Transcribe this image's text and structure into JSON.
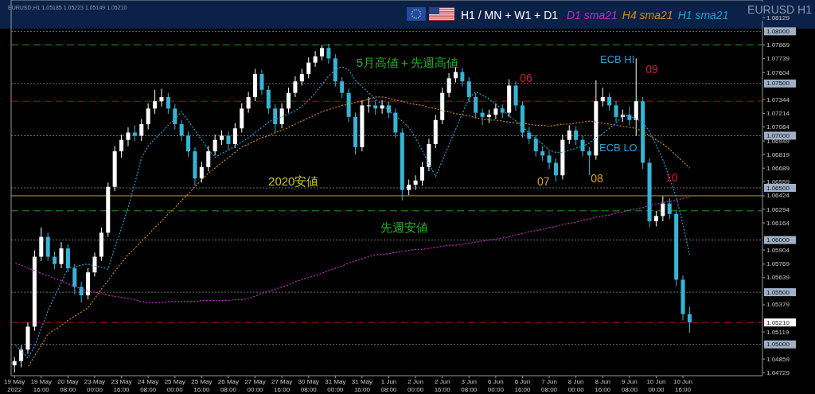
{
  "chart_data": {
    "type": "candlestick",
    "title": "H1 / MN + W1 + D1",
    "subtitle": "EURUSD H1",
    "legend": "top",
    "annotations": [
      "EURUSD,H1  1.05185 1.05223 1.05149 1.05210",
      "5月高値＋先週高値",
      "2020安値",
      "先週安値",
      "06",
      "07",
      "08",
      "09",
      "10",
      "ECB HI",
      "ECB LO"
    ],
    "ylim": [
      1.047,
      1.083
    ],
    "categories": [
      "19 May 2022",
      null,
      null,
      null,
      "19 May 16:00",
      null,
      null,
      null,
      "20 May 08:00",
      null,
      null,
      null,
      "23 May 00:00",
      null,
      null,
      null,
      "23 May 16:00",
      null,
      null,
      null,
      "24 May 08:00",
      null,
      null,
      null,
      "25 May 00:00",
      null,
      null,
      null,
      "25 May 16:00",
      null,
      null,
      null,
      "26 May 08:00",
      null,
      null,
      null,
      "27 May 00:00",
      null,
      null,
      null,
      "27 May 16:00",
      null,
      null,
      null,
      "30 May 08:00",
      null,
      null,
      null,
      "31 May 00:00",
      null,
      null,
      null,
      "31 May 16:00",
      null,
      null,
      null,
      "1 Jun 08:00",
      null,
      null,
      null,
      "2 Jun 00:00",
      null,
      null,
      null,
      "2 Jun 16:00",
      null,
      null,
      null,
      "3 Jun 08:00",
      null,
      null,
      null,
      "6 Jun 00:00",
      null,
      null,
      null,
      "6 Jun 16:00",
      null,
      null,
      null,
      "7 Jun 08:00",
      null,
      null,
      null,
      "8 Jun 00:00",
      null,
      null,
      null,
      "8 Jun 16:00",
      null,
      null,
      null,
      "9 Jun 08:00",
      null,
      null,
      null,
      "10 Jun 00:00",
      null,
      null,
      null,
      "10 Jun 16:00",
      null
    ],
    "yticks": [
      1.04729,
      1.04859,
      1.05119,
      1.05379,
      1.05639,
      1.05769,
      1.05904,
      1.06164,
      1.06294,
      1.06424,
      1.06559,
      1.06689,
      1.06819,
      1.06949,
      1.07084,
      1.07214,
      1.07344,
      1.07604,
      1.07739,
      1.07869,
      1.08129
    ],
    "ref_lines": [
      {
        "axis": "y",
        "value": 1.0787,
        "color": "#1f9e1f",
        "line_style": "dashed"
      },
      {
        "axis": "y",
        "value": 1.0628,
        "color": "#1f9e1f",
        "line_style": "dashed"
      },
      {
        "axis": "y",
        "value": 1.06424,
        "color": "#b5a800",
        "line_style": "solid"
      },
      {
        "axis": "y",
        "value": 1.0733,
        "color": "#b01010",
        "line_style": "dashed"
      },
      {
        "axis": "y",
        "value": 1.0521,
        "color": "#b01010",
        "line_style": "dashed",
        "label": "1.05210"
      },
      {
        "axis": "y",
        "value": 1.08,
        "color": "#707070",
        "line_style": "dotted",
        "label": "1.08000"
      },
      {
        "axis": "y",
        "value": 1.075,
        "color": "#707070",
        "line_style": "dotted",
        "label": "1.07500"
      },
      {
        "axis": "y",
        "value": 1.07,
        "color": "#707070",
        "line_style": "dotted",
        "label": "1.07000"
      },
      {
        "axis": "y",
        "value": 1.065,
        "color": "#707070",
        "line_style": "dotted",
        "label": "1.06500"
      },
      {
        "axis": "y",
        "value": 1.06,
        "color": "#707070",
        "line_style": "dotted",
        "label": "1.06000"
      },
      {
        "axis": "y",
        "value": 1.055,
        "color": "#707070",
        "line_style": "dotted",
        "label": "1.05500"
      },
      {
        "axis": "y",
        "value": 1.05,
        "color": "#707070",
        "line_style": "dotted",
        "label": "1.05000"
      }
    ],
    "ohlc": [
      [
        1.048,
        1.0488,
        1.0473,
        1.0484
      ],
      [
        1.0484,
        1.0499,
        1.0478,
        1.0495
      ],
      [
        1.0495,
        1.0521,
        1.0491,
        1.0517
      ],
      [
        1.0517,
        1.059,
        1.0513,
        1.0584
      ],
      [
        1.0584,
        1.0612,
        1.058,
        1.0603
      ],
      [
        1.0603,
        1.0607,
        1.058,
        1.0584
      ],
      [
        1.0584,
        1.0589,
        1.0572,
        1.0577
      ],
      [
        1.0577,
        1.0598,
        1.0573,
        1.0592
      ],
      [
        1.0592,
        1.0596,
        1.0569,
        1.0573
      ],
      [
        1.0573,
        1.0577,
        1.0548,
        1.0555
      ],
      [
        1.0555,
        1.056,
        1.054,
        1.0547
      ],
      [
        1.0547,
        1.0573,
        1.0543,
        1.0569
      ],
      [
        1.0569,
        1.0588,
        1.0565,
        1.0584
      ],
      [
        1.0584,
        1.0612,
        1.058,
        1.0607
      ],
      [
        1.0607,
        1.0655,
        1.0603,
        1.0651
      ],
      [
        1.0651,
        1.069,
        1.0647,
        1.0685
      ],
      [
        1.0685,
        1.0701,
        1.0679,
        1.0696
      ],
      [
        1.0696,
        1.0708,
        1.069,
        1.0703
      ],
      [
        1.0703,
        1.071,
        1.0695,
        1.07
      ],
      [
        1.07,
        1.0716,
        1.0695,
        1.0711
      ],
      [
        1.0711,
        1.0731,
        1.0706,
        1.0726
      ],
      [
        1.0726,
        1.0744,
        1.0721,
        1.0733
      ],
      [
        1.0733,
        1.0745,
        1.0728,
        1.0737
      ],
      [
        1.0737,
        1.0741,
        1.0721,
        1.0726
      ],
      [
        1.0726,
        1.073,
        1.0706,
        1.0711
      ],
      [
        1.0711,
        1.0715,
        1.0695,
        1.07
      ],
      [
        1.07,
        1.0704,
        1.068,
        1.0685
      ],
      [
        1.0685,
        1.0689,
        1.0652,
        1.0659
      ],
      [
        1.0659,
        1.0675,
        1.0655,
        1.067
      ],
      [
        1.067,
        1.069,
        1.0666,
        1.0685
      ],
      [
        1.0685,
        1.0701,
        1.0681,
        1.0696
      ],
      [
        1.0696,
        1.0705,
        1.0691,
        1.07
      ],
      [
        1.07,
        1.0704,
        1.0687,
        1.0692
      ],
      [
        1.0692,
        1.0712,
        1.0688,
        1.0707
      ],
      [
        1.0707,
        1.0731,
        1.0703,
        1.0726
      ],
      [
        1.0726,
        1.0742,
        1.0722,
        1.0737
      ],
      [
        1.0737,
        1.0764,
        1.0733,
        1.0759
      ],
      [
        1.0759,
        1.0763,
        1.0739,
        1.0744
      ],
      [
        1.0744,
        1.0748,
        1.0721,
        1.0726
      ],
      [
        1.0726,
        1.073,
        1.0703,
        1.0711
      ],
      [
        1.0711,
        1.0731,
        1.0707,
        1.0726
      ],
      [
        1.0726,
        1.0746,
        1.0722,
        1.0741
      ],
      [
        1.0741,
        1.0757,
        1.0737,
        1.0752
      ],
      [
        1.0752,
        1.0764,
        1.0748,
        1.0759
      ],
      [
        1.0759,
        1.0775,
        1.0755,
        1.077
      ],
      [
        1.077,
        1.0781,
        1.0766,
        1.0776
      ],
      [
        1.0776,
        1.0787,
        1.0772,
        1.0784
      ],
      [
        1.0784,
        1.0788,
        1.0769,
        1.0774
      ],
      [
        1.0774,
        1.0778,
        1.0747,
        1.0752
      ],
      [
        1.0752,
        1.0756,
        1.0736,
        1.0741
      ],
      [
        1.0741,
        1.0745,
        1.0713,
        1.0718
      ],
      [
        1.0718,
        1.0722,
        1.0682,
        1.0689
      ],
      [
        1.0689,
        1.0734,
        1.0685,
        1.0729
      ],
      [
        1.0729,
        1.0737,
        1.0722,
        1.0729
      ],
      [
        1.0729,
        1.0734,
        1.072,
        1.0726
      ],
      [
        1.0726,
        1.0734,
        1.0721,
        1.0729
      ],
      [
        1.0729,
        1.0733,
        1.0717,
        1.0722
      ],
      [
        1.0722,
        1.0726,
        1.0698,
        1.0703
      ],
      [
        1.0703,
        1.0707,
        1.0638,
        1.0648
      ],
      [
        1.0648,
        1.0658,
        1.0643,
        1.0653
      ],
      [
        1.0653,
        1.0662,
        1.0648,
        1.0657
      ],
      [
        1.0657,
        1.0675,
        1.0652,
        1.067
      ],
      [
        1.067,
        1.0697,
        1.0666,
        1.0692
      ],
      [
        1.0692,
        1.072,
        1.0688,
        1.0715
      ],
      [
        1.0715,
        1.0746,
        1.0711,
        1.0741
      ],
      [
        1.0741,
        1.076,
        1.0737,
        1.0755
      ],
      [
        1.0755,
        1.0766,
        1.0751,
        1.0761
      ],
      [
        1.0761,
        1.0765,
        1.0747,
        1.0752
      ],
      [
        1.0752,
        1.0756,
        1.0732,
        1.0737
      ],
      [
        1.0737,
        1.0741,
        1.0717,
        1.0722
      ],
      [
        1.0722,
        1.0726,
        1.071,
        1.0718
      ],
      [
        1.0718,
        1.0725,
        1.0712,
        1.072
      ],
      [
        1.072,
        1.0731,
        1.0716,
        1.0726
      ],
      [
        1.0726,
        1.073,
        1.0717,
        1.0722
      ],
      [
        1.0722,
        1.0754,
        1.0718,
        1.0748
      ],
      [
        1.0748,
        1.0752,
        1.0724,
        1.0729
      ],
      [
        1.0729,
        1.0733,
        1.0698,
        1.0703
      ],
      [
        1.0703,
        1.0708,
        1.0692,
        1.0697
      ],
      [
        1.0697,
        1.0701,
        1.068,
        1.0685
      ],
      [
        1.0685,
        1.069,
        1.0676,
        1.0681
      ],
      [
        1.0681,
        1.0685,
        1.0668,
        1.0674
      ],
      [
        1.0674,
        1.0678,
        1.0656,
        1.0662
      ],
      [
        1.0662,
        1.0701,
        1.0658,
        1.0696
      ],
      [
        1.0696,
        1.071,
        1.0692,
        1.0705
      ],
      [
        1.0705,
        1.0709,
        1.0691,
        1.0696
      ],
      [
        1.0696,
        1.07,
        1.068,
        1.0685
      ],
      [
        1.0685,
        1.0689,
        1.0662,
        1.0681
      ],
      [
        1.0681,
        1.0753,
        1.0677,
        1.0733
      ],
      [
        1.0733,
        1.0746,
        1.0728,
        1.0737
      ],
      [
        1.0737,
        1.0741,
        1.0724,
        1.0729
      ],
      [
        1.0729,
        1.0733,
        1.0713,
        1.0718
      ],
      [
        1.0718,
        1.0725,
        1.0713,
        1.072
      ],
      [
        1.072,
        1.0728,
        1.071,
        1.0715
      ],
      [
        1.0715,
        1.0774,
        1.07,
        1.0733
      ],
      [
        1.0733,
        1.0737,
        1.0668,
        1.0674
      ],
      [
        1.0674,
        1.0678,
        1.0612,
        1.0618
      ],
      [
        1.0618,
        1.0628,
        1.0613,
        1.0623
      ],
      [
        1.0623,
        1.0642,
        1.0618,
        1.0635
      ],
      [
        1.0635,
        1.064,
        1.062,
        1.0625
      ],
      [
        1.0625,
        1.0629,
        1.0556,
        1.0562
      ],
      [
        1.0562,
        1.0566,
        1.0523,
        1.0529
      ],
      [
        1.0529,
        1.0536,
        1.0511,
        1.0521
      ]
    ],
    "colors": [
      "#ffffff",
      "#ffffff",
      "#ffffff",
      "#ffffff",
      "#ffffff",
      "#35b5d5",
      "#35b5d5",
      "#ffffff",
      "#35b5d5",
      "#35b5d5",
      "#35b5d5",
      "#ffffff",
      "#ffffff",
      "#ffffff",
      "#ffffff",
      "#ffffff",
      "#ffffff",
      "#ffffff",
      "#35b5d5",
      "#ffffff",
      "#ffffff",
      "#ffffff",
      "#ffffff",
      "#35b5d5",
      "#35b5d5",
      "#35b5d5",
      "#35b5d5",
      "#35b5d5",
      "#ffffff",
      "#ffffff",
      "#ffffff",
      "#ffffff",
      "#35b5d5",
      "#ffffff",
      "#ffffff",
      "#ffffff",
      "#ffffff",
      "#35b5d5",
      "#35b5d5",
      "#35b5d5",
      "#ffffff",
      "#ffffff",
      "#ffffff",
      "#ffffff",
      "#ffffff",
      "#ffffff",
      "#ffffff",
      "#35b5d5",
      "#35b5d5",
      "#35b5d5",
      "#35b5d5",
      "#35b5d5",
      "#ffffff",
      "#ffffff",
      "#35b5d5",
      "#ffffff",
      "#35b5d5",
      "#35b5d5",
      "#35b5d5",
      "#ffffff",
      "#ffffff",
      "#ffffff",
      "#ffffff",
      "#ffffff",
      "#ffffff",
      "#ffffff",
      "#ffffff",
      "#35b5d5",
      "#35b5d5",
      "#35b5d5",
      "#35b5d5",
      "#ffffff",
      "#ffffff",
      "#35b5d5",
      "#ffffff",
      "#35b5d5",
      "#35b5d5",
      "#35b5d5",
      "#35b5d5",
      "#35b5d5",
      "#35b5d5",
      "#35b5d5",
      "#ffffff",
      "#ffffff",
      "#35b5d5",
      "#35b5d5",
      "#35b5d5",
      "#ffffff",
      "#ffffff",
      "#35b5d5",
      "#35b5d5",
      "#ffffff",
      "#35b5d5",
      "#ffffff",
      "#35b5d5",
      "#35b5d5",
      "#ffffff",
      "#ffffff",
      "#35b5d5",
      "#35b5d5",
      "#35b5d5",
      "#35b5d5"
    ],
    "series": [
      {
        "name": "D1 sma21",
        "type": "line",
        "line_style": "dotted",
        "color": "#c42bc4",
        "values": [
          1.0578,
          1.0576,
          1.0573,
          1.0571,
          1.0568,
          1.0566,
          1.0563,
          1.0561,
          1.0558,
          1.0556,
          1.0553,
          1.0551,
          1.055,
          1.0549,
          1.0547,
          1.0546,
          1.0545,
          1.0544,
          1.0543,
          1.0541,
          1.054,
          1.054,
          1.054,
          1.0541,
          1.0541,
          1.0541,
          1.0541,
          1.0541,
          1.0542,
          1.0542,
          1.0542,
          1.0542,
          1.0542,
          1.0543,
          1.0543,
          1.0544,
          1.0546,
          1.0549,
          1.0551,
          1.0553,
          1.0555,
          1.0557,
          1.056,
          1.0562,
          1.0564,
          1.0566,
          1.0568,
          1.0571,
          1.0573,
          1.0575,
          1.0578,
          1.058,
          1.0582,
          1.0584,
          1.0586,
          1.0586,
          1.0587,
          1.0588,
          1.0589,
          1.059,
          1.0591,
          1.0591,
          1.0592,
          1.0593,
          1.0594,
          1.0595,
          1.0595,
          1.0596,
          1.0597,
          1.0598,
          1.0599,
          1.06,
          1.0601,
          1.0602,
          1.0603,
          1.0605,
          1.0606,
          1.0608,
          1.0609,
          1.061,
          1.0612,
          1.0613,
          1.0615,
          1.0616,
          1.0617,
          1.0619,
          1.062,
          1.0622,
          1.0623,
          1.0624,
          1.0626,
          1.0627,
          1.0629,
          1.063,
          1.0631,
          1.0633,
          1.0634,
          1.0636,
          1.0637,
          1.0638,
          1.064,
          1.0641
        ]
      },
      {
        "name": "H4 sma21",
        "type": "line",
        "line_style": "dotted",
        "color": "#d08a10",
        "values": [
          null,
          null,
          1.0478,
          1.0489,
          1.0499,
          1.051,
          1.0514,
          1.0518,
          1.0523,
          1.0527,
          1.0531,
          1.0535,
          1.0544,
          1.0553,
          1.0561,
          1.057,
          1.0578,
          1.0586,
          1.0592,
          1.0599,
          1.0605,
          1.0612,
          1.0618,
          1.0625,
          1.0631,
          1.0638,
          1.0644,
          1.0651,
          1.0658,
          1.0664,
          1.0669,
          1.0674,
          1.0679,
          1.0684,
          1.0689,
          1.0692,
          1.0695,
          1.0698,
          1.07,
          1.0703,
          1.0705,
          1.0708,
          1.0711,
          1.0714,
          1.0717,
          1.072,
          1.0723,
          1.0725,
          1.0727,
          1.0729,
          1.073,
          1.0732,
          1.0733,
          1.0735,
          1.0737,
          1.0737,
          1.0736,
          1.0734,
          1.0733,
          1.0731,
          1.073,
          1.0729,
          1.0727,
          1.0726,
          1.0724,
          1.0723,
          1.0721,
          1.072,
          1.0719,
          1.0717,
          1.0716,
          1.0715,
          1.0715,
          1.0714,
          1.0713,
          1.0712,
          1.0712,
          1.0711,
          1.071,
          1.071,
          1.0709,
          1.071,
          1.0711,
          1.0711,
          1.0712,
          1.0713,
          1.0714,
          1.0713,
          1.0712,
          1.0711,
          1.071,
          1.0709,
          1.0708,
          1.0707,
          1.0704,
          1.07,
          1.0696,
          1.0692,
          1.0687,
          1.0681,
          1.0675,
          1.0669
        ]
      },
      {
        "name": "H1 sma21",
        "type": "line",
        "line_style": "dotted",
        "color": "#1e9fd8",
        "values": [
          1.05,
          1.0494,
          1.0487,
          1.0498,
          1.0515,
          1.0532,
          1.0546,
          1.0559,
          1.0573,
          1.0574,
          1.0576,
          1.0577,
          1.0575,
          1.0574,
          1.0572,
          1.0592,
          1.0611,
          1.0631,
          1.0654,
          1.0679,
          1.069,
          1.0697,
          1.0703,
          1.071,
          1.0716,
          1.0723,
          1.0714,
          1.0705,
          1.0696,
          1.0687,
          1.0679,
          1.0683,
          1.0686,
          1.069,
          1.0694,
          1.0698,
          1.0703,
          1.0708,
          1.0713,
          1.0716,
          1.0718,
          1.0721,
          1.0724,
          1.0728,
          1.0734,
          1.0741,
          1.0749,
          1.0757,
          1.0763,
          1.0766,
          1.0763,
          1.0753,
          1.0747,
          1.0741,
          1.0735,
          1.073,
          1.0724,
          1.0719,
          1.0714,
          1.0708,
          1.0698,
          1.0686,
          1.0673,
          1.0661,
          1.0676,
          1.0691,
          1.0706,
          1.0721,
          1.0736,
          1.0742,
          1.0739,
          1.0735,
          1.073,
          1.0725,
          1.0719,
          1.0714,
          1.0708,
          1.0703,
          1.0697,
          1.0692,
          1.0686,
          1.0684,
          1.0684,
          1.0686,
          1.0688,
          1.069,
          1.0693,
          1.0698,
          1.0702,
          1.0707,
          1.0712,
          1.0719,
          1.0719,
          1.0716,
          1.0713,
          1.0704,
          1.0691,
          1.0677,
          1.066,
          1.0641,
          1.0615,
          1.0586
        ]
      }
    ]
  }
}
